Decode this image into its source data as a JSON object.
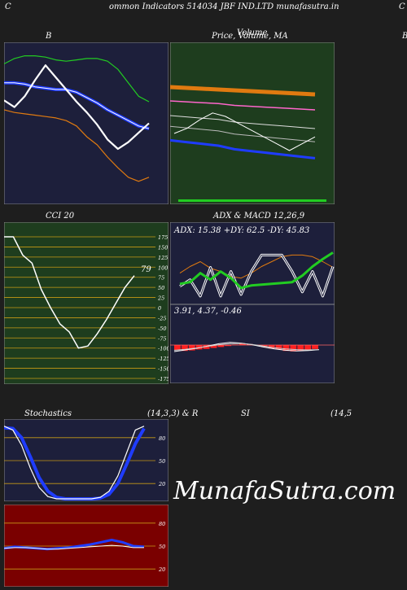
{
  "header": {
    "left_letter": "C",
    "title": "ommon  Indicators 514034  JBF IND.LTD munafasutra.in",
    "right_letter": "C"
  },
  "labels": {
    "bb": "B",
    "price": "Price,  Volume,  MA",
    "price_overlap": "Volume",
    "edge_b": "B",
    "cci": "CCI 20",
    "adx_macd": "ADX  & MACD 12,26,9",
    "stoch": "Stochastics",
    "stoch_params": "(14,3,3) & R",
    "si": "SI",
    "rsi_params": "(14,5"
  },
  "watermark": "MunafaSutra.com",
  "colors": {
    "navy": "#1d1f3b",
    "forest": "#1e3d1e",
    "maroon": "#7a0000",
    "green_line": "#22cc22",
    "orange": "#e07a10",
    "blue": "#1f3cff",
    "white": "#ffffff",
    "red_bar": "#ff2020"
  },
  "chart_data": [
    {
      "type": "line",
      "panel": "bollinger",
      "title": "B",
      "series": [
        {
          "role": "upper band",
          "values": [
            64,
            68,
            70,
            70,
            69,
            67,
            66,
            67,
            68,
            68,
            66,
            60,
            50,
            40,
            36
          ]
        },
        {
          "role": "middle band",
          "values": [
            50,
            50,
            49,
            47,
            46,
            45,
            45,
            43,
            39,
            35,
            30,
            26,
            22,
            18,
            16
          ]
        },
        {
          "role": "lower band",
          "values": [
            30,
            28,
            27,
            26,
            25,
            24,
            22,
            18,
            10,
            4,
            -5,
            -13,
            -20,
            -23,
            -20
          ]
        },
        {
          "role": "price",
          "values": [
            37,
            32,
            40,
            52,
            63,
            54,
            45,
            36,
            28,
            19,
            8,
            1,
            6,
            13,
            20
          ]
        }
      ]
    },
    {
      "type": "line",
      "panel": "price_volume_ma",
      "title": "Price,  Volume,  MA",
      "series": [
        {
          "role": "moving average (thick)",
          "values": [
            10,
            12,
            14,
            16,
            18,
            20,
            22,
            24,
            26,
            28
          ]
        },
        {
          "role": "moving average (pink)",
          "values": [
            20,
            21,
            22,
            23,
            25,
            26,
            27,
            28,
            29,
            30
          ]
        },
        {
          "role": "moving average",
          "values": [
            25,
            26,
            27,
            28,
            30,
            31,
            32,
            33,
            34,
            35
          ]
        },
        {
          "role": "moving average",
          "values": [
            28,
            29,
            30,
            31,
            33,
            34,
            35,
            36,
            37,
            38
          ]
        },
        {
          "role": "moving average (blue)",
          "values": [
            32,
            33,
            34,
            35,
            37,
            38,
            39,
            40,
            41,
            42
          ]
        },
        {
          "role": "price",
          "values": [
            30,
            33,
            38,
            42,
            40,
            36,
            32,
            28,
            24,
            20,
            24,
            28
          ]
        }
      ]
    },
    {
      "type": "line",
      "panel": "cci",
      "title": "CCI 20",
      "ylim": [
        -175,
        175
      ],
      "yticks": [
        175,
        150,
        125,
        100,
        75,
        50,
        25,
        0,
        -25,
        -50,
        -75,
        -100,
        -125,
        -150,
        -175
      ],
      "last_value_label": "79",
      "series": [
        {
          "name": "CCI",
          "values": [
            175,
            175,
            130,
            110,
            45,
            0,
            -40,
            -60,
            -100,
            -95,
            -65,
            -30,
            10,
            50,
            79
          ]
        }
      ]
    },
    {
      "type": "line",
      "panel": "adx",
      "title": "ADX  & MACD 12,26,9",
      "readout": "ADX: 15.38  +DY: 62.5 -DY: 45.83",
      "series": [
        {
          "role": "ADX",
          "values": [
            38,
            46,
            52,
            44,
            40,
            34,
            32,
            38,
            46,
            52,
            58,
            60,
            60,
            58,
            52,
            45
          ]
        },
        {
          "role": "+DI",
          "values": [
            25,
            27,
            38,
            30,
            40,
            32,
            20,
            23,
            24,
            25,
            26,
            27,
            35,
            46,
            55,
            63
          ]
        },
        {
          "role": "-DI",
          "values": [
            22,
            30,
            10,
            45,
            10,
            40,
            12,
            40,
            60,
            60,
            60,
            40,
            15,
            40,
            10,
            46
          ]
        }
      ]
    },
    {
      "type": "bar",
      "panel": "macd",
      "readout": "3.91,  4.37,  -0.46",
      "series": [
        {
          "role": "MACD histogram",
          "values": [
            -1,
            -1.2,
            -1.1,
            -0.9,
            -0.8,
            -0.6,
            -0.4,
            -0.2,
            0.1,
            0.3,
            0.2,
            -0.1,
            -0.4,
            -0.7,
            -0.9,
            -1.2,
            -1.3,
            -1.2,
            -1.0,
            -0.8
          ]
        },
        {
          "role": "MACD",
          "values": [
            -2,
            -1.5,
            -1,
            -0.3,
            0.4,
            0.8,
            0.6,
            0.1,
            -0.6,
            -1.2,
            -1.6,
            -1.8,
            -1.7,
            -1.4
          ]
        },
        {
          "role": "signal",
          "values": [
            -1.6,
            -1.3,
            -0.9,
            -0.4,
            0.1,
            0.4,
            0.5,
            0.2,
            -0.3,
            -0.8,
            -1.2,
            -1.4,
            -1.5,
            -1.4
          ]
        }
      ]
    },
    {
      "type": "line",
      "panel": "stochastics",
      "title": "Stochastics",
      "ylim": [
        0,
        100
      ],
      "yticks": [
        80,
        50,
        20
      ],
      "series": [
        {
          "role": "%K",
          "values": [
            95,
            90,
            70,
            40,
            15,
            3,
            0,
            0,
            0,
            0,
            0,
            2,
            10,
            30,
            60,
            90,
            95
          ]
        },
        {
          "role": "%D",
          "values": [
            93,
            92,
            80,
            55,
            28,
            10,
            2,
            0,
            0,
            0,
            0,
            1,
            6,
            20,
            45,
            72,
            92
          ]
        }
      ]
    },
    {
      "type": "line",
      "panel": "rsi",
      "title": "SI",
      "ylim": [
        0,
        100
      ],
      "yticks": [
        80,
        50,
        20
      ],
      "series": [
        {
          "role": "RSI",
          "values": [
            47,
            49,
            48,
            47,
            46,
            47,
            48,
            50,
            52,
            55,
            58,
            55,
            50,
            49
          ]
        },
        {
          "role": "RSI signal",
          "values": [
            47,
            48,
            48,
            47,
            46,
            46,
            47,
            48,
            49,
            50,
            51,
            50,
            48,
            48
          ]
        }
      ]
    }
  ]
}
